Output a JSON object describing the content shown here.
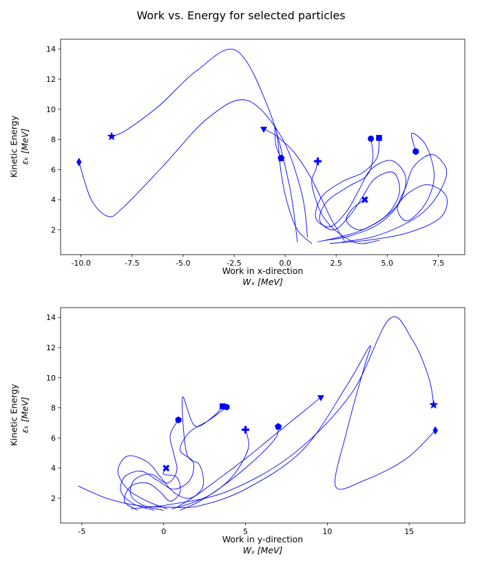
{
  "figure": {
    "title": "Work vs. Energy for selected particles",
    "background": "#ffffff",
    "line_color": "#0000ff",
    "marker_color": "#0000ff",
    "frame_color": "#000000"
  },
  "chart_data": {
    "type": "line",
    "title": "Work vs. Energy for selected particles",
    "legend": "none",
    "grid": false,
    "subplots": [
      {
        "id": "work-x",
        "xlabel_text": "Work in x-direction",
        "xlabel_math": "Wₓ [MeV]",
        "ylabel_text": "Kinetic Energy",
        "ylabel_math": "εₖ [MeV]",
        "x_range": [
          -11.0,
          8.8
        ],
        "y_range": [
          0.35,
          14.65
        ],
        "x_ticks": [
          {
            "v": -10.0,
            "label": "-10.0"
          },
          {
            "v": -7.5,
            "label": "-7.5"
          },
          {
            "v": -5.0,
            "label": "-5.0"
          },
          {
            "v": -2.5,
            "label": "-2.5"
          },
          {
            "v": 0.0,
            "label": "0.0"
          },
          {
            "v": 2.5,
            "label": "2.5"
          },
          {
            "v": 5.0,
            "label": "5.0"
          },
          {
            "v": 7.5,
            "label": "7.5"
          }
        ],
        "y_ticks": [
          {
            "v": 2,
            "label": "2"
          },
          {
            "v": 4,
            "label": "4"
          },
          {
            "v": 6,
            "label": "6"
          },
          {
            "v": 8,
            "label": "8"
          },
          {
            "v": 10,
            "label": "10"
          },
          {
            "v": 12,
            "label": "12"
          },
          {
            "v": 14,
            "label": "14"
          }
        ],
        "traj_key": "traj_x"
      },
      {
        "id": "work-y",
        "xlabel_text": "Work in y-direction",
        "xlabel_math": "Wᵧ [MeV]",
        "ylabel_text": "Kinetic Energy",
        "ylabel_math": "εₖ [MeV]",
        "x_range": [
          -6.3,
          18.4
        ],
        "y_range": [
          0.35,
          14.65
        ],
        "x_ticks": [
          {
            "v": -5,
            "label": "-5"
          },
          {
            "v": 0,
            "label": "0"
          },
          {
            "v": 5,
            "label": "5"
          },
          {
            "v": 10,
            "label": "10"
          },
          {
            "v": 15,
            "label": "15"
          }
        ],
        "y_ticks": [
          {
            "v": 2,
            "label": "2"
          },
          {
            "v": 4,
            "label": "4"
          },
          {
            "v": 6,
            "label": "6"
          },
          {
            "v": 8,
            "label": "8"
          },
          {
            "v": 10,
            "label": "10"
          },
          {
            "v": 12,
            "label": "12"
          },
          {
            "v": 14,
            "label": "14"
          }
        ],
        "traj_key": "traj_y"
      }
    ],
    "particles": [
      {
        "marker": "thin-diamond",
        "end_work_x": [
          -10.1,
          6.5
        ],
        "end_work_y": [
          16.6,
          6.5
        ],
        "traj_x": [
          [
            1.1,
            1.5
          ],
          [
            0.8,
            4.5
          ],
          [
            -0.2,
            8.2
          ],
          [
            -1.9,
            10.6
          ],
          [
            -3.8,
            9.4
          ],
          [
            -6.0,
            6.2
          ],
          [
            -8.0,
            3.4
          ],
          [
            -8.7,
            2.9
          ],
          [
            -9.5,
            4.0
          ],
          [
            -10.1,
            6.5
          ]
        ],
        "traj_y": [
          [
            -5.2,
            2.8
          ],
          [
            -3.5,
            2.0
          ],
          [
            -1.5,
            1.5
          ],
          [
            0.5,
            1.4
          ],
          [
            2.2,
            1.5
          ],
          [
            5.0,
            2.6
          ],
          [
            8.5,
            5.2
          ],
          [
            11.2,
            9.5
          ],
          [
            12.6,
            12.1
          ],
          [
            12.2,
            10.5
          ],
          [
            11.2,
            6.5
          ],
          [
            10.5,
            2.8
          ],
          [
            12.3,
            3.2
          ],
          [
            14.8,
            4.6
          ],
          [
            16.6,
            6.5
          ]
        ]
      },
      {
        "marker": "star",
        "end_work_x": [
          -8.5,
          8.2
        ],
        "end_work_y": [
          16.5,
          8.2
        ],
        "traj_x": [
          [
            0.6,
            1.2
          ],
          [
            0.2,
            5.0
          ],
          [
            -0.8,
            10.0
          ],
          [
            -2.4,
            13.9
          ],
          [
            -4.3,
            12.6
          ],
          [
            -6.2,
            10.2
          ],
          [
            -7.8,
            8.6
          ],
          [
            -8.5,
            8.2
          ]
        ],
        "traj_y": [
          [
            -2.0,
            1.3
          ],
          [
            0.5,
            1.6
          ],
          [
            4.0,
            2.5
          ],
          [
            8.0,
            5.0
          ],
          [
            11.5,
            9.0
          ],
          [
            13.8,
            13.9
          ],
          [
            15.2,
            12.5
          ],
          [
            16.2,
            10.0
          ],
          [
            16.5,
            8.2
          ]
        ]
      },
      {
        "marker": "triangle-down",
        "end_work_x": [
          -1.05,
          8.7
        ],
        "end_work_y": [
          9.6,
          8.7
        ],
        "traj_x": [
          [
            2.9,
            1.3
          ],
          [
            2.3,
            2.6
          ],
          [
            1.8,
            4.0
          ],
          [
            1.2,
            5.6
          ],
          [
            0.4,
            7.2
          ],
          [
            -0.4,
            8.2
          ],
          [
            -1.05,
            8.7
          ]
        ],
        "traj_y": [
          [
            0.8,
            1.4
          ],
          [
            2.0,
            2.2
          ],
          [
            3.5,
            3.4
          ],
          [
            5.2,
            4.8
          ],
          [
            7.0,
            6.4
          ],
          [
            8.6,
            7.8
          ],
          [
            9.6,
            8.7
          ]
        ]
      },
      {
        "marker": "pentagon",
        "end_work_x": [
          -0.2,
          6.75
        ],
        "end_work_y": [
          7.0,
          6.75
        ],
        "traj_x": [
          [
            1.3,
            1.1
          ],
          [
            0.6,
            2.0
          ],
          [
            0.1,
            3.8
          ],
          [
            -0.2,
            5.8
          ],
          [
            -0.35,
            7.8
          ],
          [
            -0.5,
            8.9
          ],
          [
            -0.45,
            7.6
          ],
          [
            -0.2,
            6.75
          ]
        ],
        "traj_y": [
          [
            1.0,
            1.2
          ],
          [
            2.2,
            1.8
          ],
          [
            3.6,
            2.8
          ],
          [
            5.0,
            4.0
          ],
          [
            6.2,
            5.2
          ],
          [
            6.9,
            6.1
          ],
          [
            7.0,
            6.75
          ]
        ]
      },
      {
        "marker": "plus",
        "end_work_x": [
          1.6,
          6.55
        ],
        "end_work_y": [
          5.0,
          6.55
        ],
        "traj_x": [
          [
            4.6,
            1.3
          ],
          [
            3.6,
            1.1
          ],
          [
            2.6,
            1.8
          ],
          [
            1.9,
            2.8
          ],
          [
            1.5,
            4.0
          ],
          [
            1.3,
            5.2
          ],
          [
            1.5,
            6.0
          ],
          [
            1.6,
            6.55
          ]
        ],
        "traj_y": [
          [
            0.5,
            1.3
          ],
          [
            1.5,
            1.6
          ],
          [
            2.8,
            2.2
          ],
          [
            4.0,
            3.2
          ],
          [
            4.8,
            4.4
          ],
          [
            5.2,
            5.5
          ],
          [
            5.0,
            6.55
          ]
        ]
      },
      {
        "marker": "square",
        "end_work_x": [
          4.6,
          8.1
        ],
        "end_work_y": [
          3.6,
          8.1
        ],
        "traj_x": [
          [
            2.0,
            1.3
          ],
          [
            3.2,
            1.6
          ],
          [
            4.6,
            2.4
          ],
          [
            5.6,
            3.8
          ],
          [
            5.9,
            5.5
          ],
          [
            5.2,
            6.6
          ],
          [
            4.2,
            6.0
          ],
          [
            3.6,
            4.6
          ],
          [
            3.0,
            3.2
          ],
          [
            2.2,
            2.2
          ],
          [
            1.5,
            2.8
          ],
          [
            1.8,
            4.2
          ],
          [
            2.8,
            5.2
          ],
          [
            3.8,
            5.8
          ],
          [
            4.5,
            6.8
          ],
          [
            4.6,
            8.1
          ]
        ],
        "traj_y": [
          [
            0.2,
            1.3
          ],
          [
            -1.0,
            1.8
          ],
          [
            -2.2,
            2.6
          ],
          [
            -2.8,
            3.8
          ],
          [
            -2.2,
            4.8
          ],
          [
            -1.0,
            4.4
          ],
          [
            -0.2,
            3.4
          ],
          [
            0.6,
            2.4
          ],
          [
            1.6,
            2.0
          ],
          [
            2.4,
            2.8
          ],
          [
            2.2,
            4.2
          ],
          [
            1.4,
            5.0
          ],
          [
            1.15,
            8.7
          ],
          [
            1.9,
            6.8
          ],
          [
            3.0,
            7.4
          ],
          [
            3.6,
            8.1
          ]
        ]
      },
      {
        "marker": "circle",
        "end_work_x": [
          4.2,
          8.05
        ],
        "end_work_y": [
          3.85,
          8.05
        ],
        "traj_x": [
          [
            1.6,
            1.2
          ],
          [
            2.6,
            1.5
          ],
          [
            3.8,
            2.0
          ],
          [
            5.0,
            3.0
          ],
          [
            5.6,
            4.5
          ],
          [
            5.3,
            5.8
          ],
          [
            4.4,
            5.4
          ],
          [
            3.8,
            4.2
          ],
          [
            3.2,
            3.0
          ],
          [
            2.4,
            2.0
          ],
          [
            1.7,
            2.6
          ],
          [
            2.0,
            3.8
          ],
          [
            3.0,
            4.8
          ],
          [
            4.0,
            5.6
          ],
          [
            4.3,
            6.8
          ],
          [
            4.2,
            8.05
          ]
        ],
        "traj_y": [
          [
            -0.6,
            1.2
          ],
          [
            -1.8,
            1.6
          ],
          [
            -2.6,
            2.4
          ],
          [
            -2.4,
            3.4
          ],
          [
            -1.4,
            3.8
          ],
          [
            -0.4,
            3.2
          ],
          [
            0.6,
            2.6
          ],
          [
            1.6,
            3.2
          ],
          [
            1.8,
            4.4
          ],
          [
            1.0,
            5.2
          ],
          [
            1.6,
            6.4
          ],
          [
            2.8,
            7.2
          ],
          [
            3.85,
            8.05
          ]
        ]
      },
      {
        "marker": "hexagon",
        "end_work_x": [
          6.4,
          7.2
        ],
        "end_work_y": [
          0.9,
          7.2
        ],
        "traj_x": [
          [
            2.8,
            1.2
          ],
          [
            4.2,
            1.5
          ],
          [
            5.6,
            2.2
          ],
          [
            6.8,
            3.2
          ],
          [
            7.6,
            4.6
          ],
          [
            7.9,
            6.0
          ],
          [
            7.2,
            7.0
          ],
          [
            6.3,
            6.2
          ],
          [
            5.9,
            4.8
          ],
          [
            5.5,
            3.4
          ],
          [
            6.0,
            2.6
          ],
          [
            6.9,
            3.8
          ],
          [
            7.3,
            5.6
          ],
          [
            6.9,
            7.6
          ],
          [
            6.2,
            8.4
          ],
          [
            6.4,
            7.2
          ]
        ],
        "traj_y": [
          [
            0.0,
            1.2
          ],
          [
            -1.2,
            1.5
          ],
          [
            -2.0,
            2.2
          ],
          [
            -1.8,
            3.2
          ],
          [
            -0.8,
            3.6
          ],
          [
            0.2,
            3.0
          ],
          [
            0.8,
            3.8
          ],
          [
            0.6,
            5.0
          ],
          [
            0.4,
            6.2
          ],
          [
            0.9,
            7.2
          ]
        ]
      },
      {
        "marker": "x",
        "end_work_x": [
          3.9,
          4.0
        ],
        "end_work_y": [
          0.15,
          4.0
        ],
        "traj_x": [
          [
            2.2,
            1.1
          ],
          [
            4.0,
            1.3
          ],
          [
            6.0,
            1.8
          ],
          [
            7.6,
            2.8
          ],
          [
            7.9,
            4.2
          ],
          [
            7.0,
            5.0
          ],
          [
            6.0,
            4.4
          ],
          [
            5.2,
            3.2
          ],
          [
            4.4,
            2.4
          ],
          [
            3.6,
            2.0
          ],
          [
            3.0,
            2.6
          ],
          [
            3.3,
            3.4
          ],
          [
            3.9,
            4.0
          ]
        ],
        "traj_y": [
          [
            -1.6,
            1.2
          ],
          [
            -2.4,
            1.8
          ],
          [
            -2.0,
            2.8
          ],
          [
            -1.0,
            3.0
          ],
          [
            -0.2,
            2.4
          ],
          [
            0.4,
            1.8
          ],
          [
            1.0,
            2.4
          ],
          [
            0.8,
            3.4
          ],
          [
            0.0,
            3.6
          ],
          [
            0.15,
            4.0
          ]
        ]
      }
    ]
  }
}
